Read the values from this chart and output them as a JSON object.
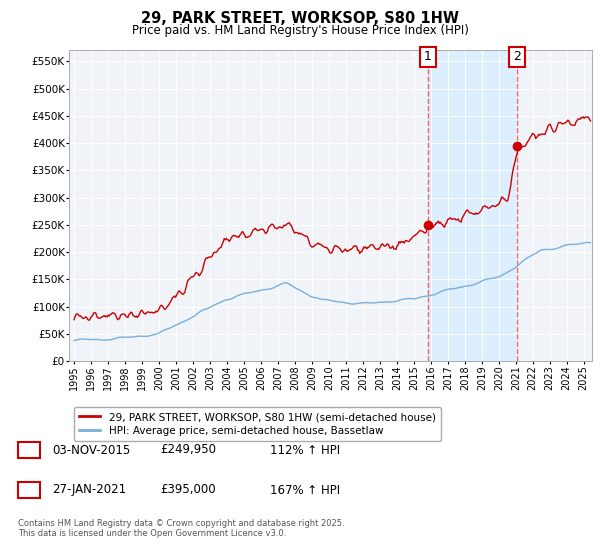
{
  "title": "29, PARK STREET, WORKSOP, S80 1HW",
  "subtitle": "Price paid vs. HM Land Registry's House Price Index (HPI)",
  "ylim": [
    0,
    570000
  ],
  "yticks": [
    0,
    50000,
    100000,
    150000,
    200000,
    250000,
    300000,
    350000,
    400000,
    450000,
    500000,
    550000
  ],
  "ytick_labels": [
    "£0",
    "£50K",
    "£100K",
    "£150K",
    "£200K",
    "£250K",
    "£300K",
    "£350K",
    "£400K",
    "£450K",
    "£500K",
    "£550K"
  ],
  "xlim_start": 1994.7,
  "xlim_end": 2025.5,
  "xticks": [
    1995,
    1996,
    1997,
    1998,
    1999,
    2000,
    2001,
    2002,
    2003,
    2004,
    2005,
    2006,
    2007,
    2008,
    2009,
    2010,
    2011,
    2012,
    2013,
    2014,
    2015,
    2016,
    2017,
    2018,
    2019,
    2020,
    2021,
    2022,
    2023,
    2024,
    2025
  ],
  "red_line_color": "#cc0000",
  "blue_line_color": "#7aafdc",
  "marker1_date": 2015.84,
  "marker2_date": 2021.07,
  "marker1_value": 249950,
  "marker2_value": 395000,
  "vline_color": "#ee6666",
  "highlight_bg": "#ddeeff",
  "legend_label_red": "29, PARK STREET, WORKSOP, S80 1HW (semi-detached house)",
  "legend_label_blue": "HPI: Average price, semi-detached house, Bassetlaw",
  "table_row1": [
    "1",
    "03-NOV-2015",
    "£249,950",
    "112% ↑ HPI"
  ],
  "table_row2": [
    "2",
    "27-JAN-2021",
    "£395,000",
    "167% ↑ HPI"
  ],
  "footer": "Contains HM Land Registry data © Crown copyright and database right 2025.\nThis data is licensed under the Open Government Licence v3.0.",
  "background_color": "#ffffff",
  "plot_bg_color": "#f0f4f8"
}
